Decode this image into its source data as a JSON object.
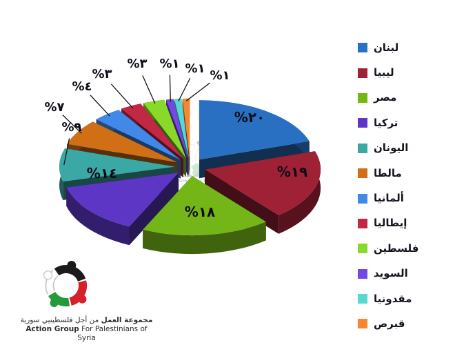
{
  "chart_data": {
    "type": "pie",
    "style": "3d-exploded",
    "title": "",
    "unit": "percent",
    "legend_position": "right",
    "slices": [
      {
        "label": "لبنان",
        "value": 20,
        "value_label": "%٢٠",
        "color": "#2a70c2"
      },
      {
        "label": "ليبيا",
        "value": 19,
        "value_label": "%١٩",
        "color": "#9e2136"
      },
      {
        "label": "مصر",
        "value": 18,
        "value_label": "%١٨",
        "color": "#74b517"
      },
      {
        "label": "تركيا",
        "value": 14,
        "value_label": "%١٤",
        "color": "#5d36c6"
      },
      {
        "label": "اليونان",
        "value": 9,
        "value_label": "%٩",
        "color": "#3aa8a5"
      },
      {
        "label": "مالطا",
        "value": 7,
        "value_label": "%٧",
        "color": "#d06f16"
      },
      {
        "label": "ألمانيا",
        "value": 4,
        "value_label": "%٤",
        "color": "#4189e9"
      },
      {
        "label": "إيطاليا",
        "value": 3,
        "value_label": "%٣",
        "color": "#c32746"
      },
      {
        "label": "فلسطين",
        "value": 3,
        "value_label": "%٣",
        "color": "#88d928"
      },
      {
        "label": "السويد",
        "value": 1,
        "value_label": "%١",
        "color": "#7448e3"
      },
      {
        "label": "مقدونيا",
        "value": 1,
        "value_label": "%١",
        "color": "#56d9d3"
      },
      {
        "label": "قبرص",
        "value": 1,
        "value_label": "%١",
        "color": "#f6862f"
      }
    ]
  },
  "footer": {
    "logo_icon": "action-group-emblem",
    "title_ar_bold": "مجموعة العمل",
    "title_ar_rest": "من أجل فلسطينيي سورية",
    "title_en_bold": "Action Group",
    "title_en_rest": "For Palestinians of Syria",
    "flag_colors": {
      "black": "#1b1b1b",
      "red": "#d6202c",
      "green": "#249a3d",
      "white": "#ffffff"
    }
  }
}
